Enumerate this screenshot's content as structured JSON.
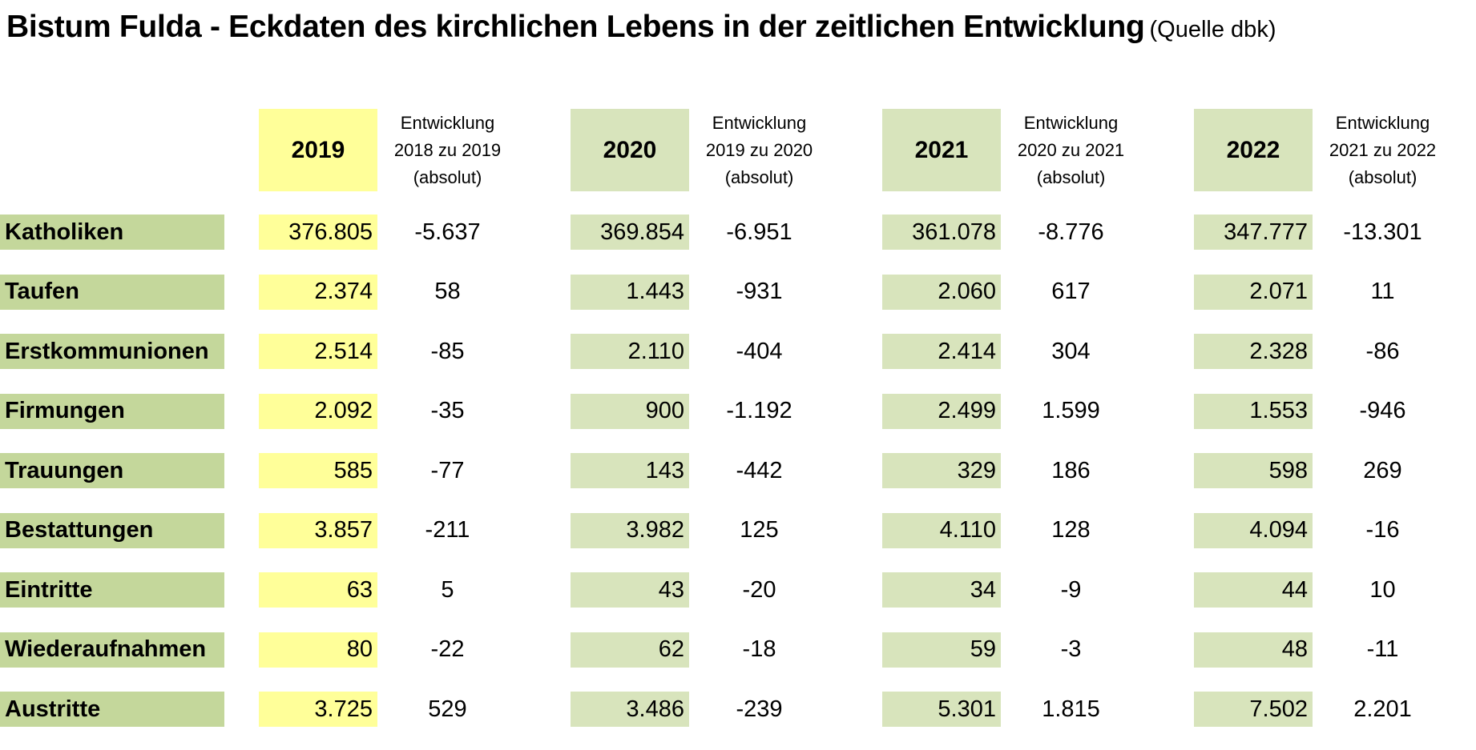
{
  "title": {
    "main": "Bistum Fulda - Eckdaten des kirchlichen Lebens in der zeitlichen Entwicklung",
    "source": "(Quelle dbk)"
  },
  "colors": {
    "highlight_2019": "#ffff99",
    "year_fill": "#d8e4bc",
    "label_fill": "#c4d79b"
  },
  "years": [
    {
      "year": "2019",
      "dev_line1": "Entwicklung",
      "dev_line2": "2018 zu 2019",
      "dev_line3": "(absolut)"
    },
    {
      "year": "2020",
      "dev_line1": "Entwicklung",
      "dev_line2": "2019 zu 2020",
      "dev_line3": "(absolut)"
    },
    {
      "year": "2021",
      "dev_line1": "Entwicklung",
      "dev_line2": "2020 zu 2021",
      "dev_line3": "(absolut)"
    },
    {
      "year": "2022",
      "dev_line1": "Entwicklung",
      "dev_line2": "2021 zu 2022",
      "dev_line3": "(absolut)"
    }
  ],
  "rows": [
    {
      "label": "Katholiken",
      "values": [
        "376.805",
        "369.854",
        "361.078",
        "347.777"
      ],
      "deltas": [
        "-5.637",
        "-6.951",
        "-8.776",
        "-13.301"
      ]
    },
    {
      "label": "Taufen",
      "values": [
        "2.374",
        "1.443",
        "2.060",
        "2.071"
      ],
      "deltas": [
        "58",
        "-931",
        "617",
        "11"
      ]
    },
    {
      "label": "Erstkommunionen",
      "values": [
        "2.514",
        "2.110",
        "2.414",
        "2.328"
      ],
      "deltas": [
        "-85",
        "-404",
        "304",
        "-86"
      ]
    },
    {
      "label": "Firmungen",
      "values": [
        "2.092",
        "900",
        "2.499",
        "1.553"
      ],
      "deltas": [
        "-35",
        "-1.192",
        "1.599",
        "-946"
      ]
    },
    {
      "label": "Trauungen",
      "values": [
        "585",
        "143",
        "329",
        "598"
      ],
      "deltas": [
        "-77",
        "-442",
        "186",
        "269"
      ]
    },
    {
      "label": "Bestattungen",
      "values": [
        "3.857",
        "3.982",
        "4.110",
        "4.094"
      ],
      "deltas": [
        "-211",
        "125",
        "128",
        "-16"
      ]
    },
    {
      "label": "Eintritte",
      "values": [
        "63",
        "43",
        "34",
        "44"
      ],
      "deltas": [
        "5",
        "-20",
        "-9",
        "10"
      ]
    },
    {
      "label": "Wiederaufnahmen",
      "values": [
        "80",
        "62",
        "59",
        "48"
      ],
      "deltas": [
        "-22",
        "-18",
        "-3",
        "-11"
      ]
    },
    {
      "label": "Austritte",
      "values": [
        "3.725",
        "3.486",
        "5.301",
        "7.502"
      ],
      "deltas": [
        "529",
        "-239",
        "1.815",
        "2.201"
      ]
    }
  ]
}
